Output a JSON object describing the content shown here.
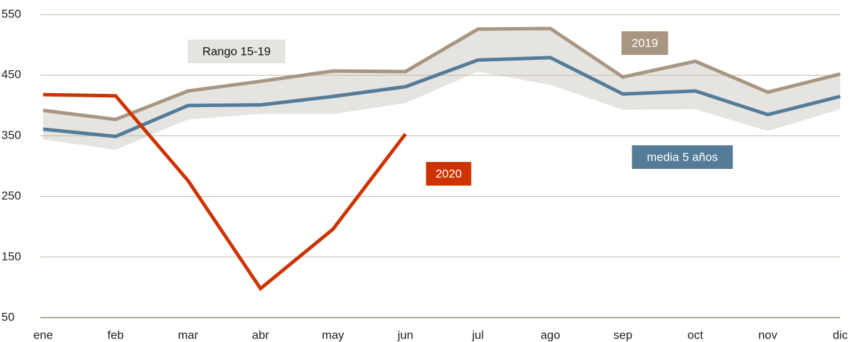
{
  "chart_data": {
    "type": "line",
    "categories": [
      "ene",
      "feb",
      "mar",
      "abr",
      "may",
      "jun",
      "jul",
      "ago",
      "sep",
      "oct",
      "nov",
      "dic"
    ],
    "band": {
      "name": "Rango 15-19",
      "color": "#e6e4e0",
      "lower": [
        344,
        327,
        377,
        386,
        386,
        404,
        456,
        434,
        393,
        394,
        358,
        394
      ],
      "upper": [
        392,
        377,
        424,
        440,
        457,
        456,
        526,
        527,
        447,
        473,
        422,
        452
      ]
    },
    "series": [
      {
        "name": "2019",
        "color": "#a89680",
        "values": [
          392,
          377,
          424,
          440,
          457,
          456,
          526,
          527,
          447,
          473,
          422,
          452
        ]
      },
      {
        "name": "media 5 años",
        "color": "#547c99",
        "values": [
          361,
          349,
          400,
          401,
          415,
          431,
          475,
          479,
          419,
          424,
          385,
          415
        ]
      },
      {
        "name": "2020",
        "color": "#cc3300",
        "values": [
          418,
          416,
          276,
          98,
          196,
          353,
          null,
          null,
          null,
          null,
          null,
          null
        ]
      }
    ],
    "ylim": [
      50,
      550
    ],
    "yticks": [
      50,
      150,
      250,
      350,
      450,
      550
    ],
    "grid": true
  }
}
